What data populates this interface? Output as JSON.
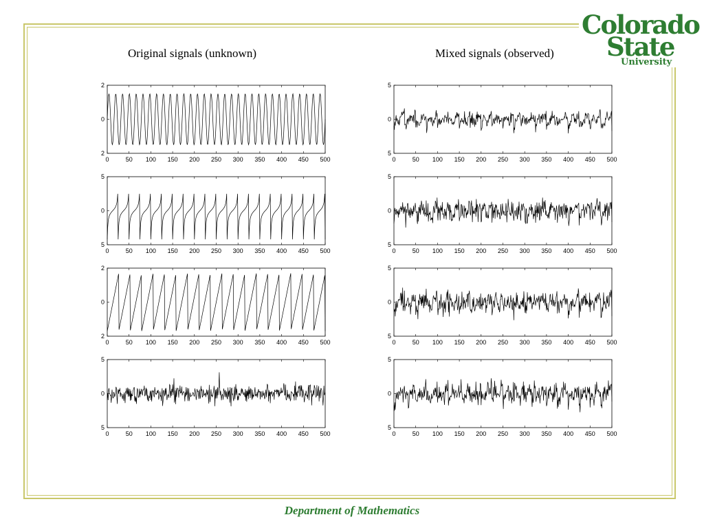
{
  "left_title": "Original signals (unknown)",
  "right_title": "Mixed signals (observed)",
  "footer": "Department of Mathematics",
  "logo": {
    "line1": "Colorado",
    "line2": "State",
    "line3": "University",
    "color": "#2e7d32"
  },
  "frame_color": "#c9c76a",
  "chart_data": [
    {
      "type": "line",
      "column": "left",
      "row": 0,
      "signal": "sine",
      "periods": 32,
      "x": [
        0,
        500
      ],
      "xticks": [
        0,
        50,
        100,
        150,
        200,
        250,
        300,
        350,
        400,
        450,
        500
      ],
      "ylim": [
        -2,
        2
      ],
      "ytick_labels": [
        "2",
        "0",
        "2"
      ],
      "amplitude": 1.5
    },
    {
      "type": "line",
      "column": "left",
      "row": 1,
      "signal": "tan-like",
      "periods": 20,
      "x": [
        0,
        500
      ],
      "xticks": [
        0,
        50,
        100,
        150,
        200,
        250,
        300,
        350,
        400,
        450,
        500
      ],
      "ylim": [
        -5,
        5
      ],
      "ytick_labels": [
        "5",
        "0",
        "5"
      ]
    },
    {
      "type": "line",
      "column": "left",
      "row": 2,
      "signal": "sawtooth",
      "periods": 19,
      "x": [
        0,
        500
      ],
      "xticks": [
        0,
        50,
        100,
        150,
        200,
        250,
        300,
        350,
        400,
        450,
        500
      ],
      "ylim": [
        -2,
        2
      ],
      "ytick_labels": [
        "2",
        "0",
        "2"
      ],
      "amplitude": 1.7
    },
    {
      "type": "line",
      "column": "left",
      "row": 3,
      "signal": "noise",
      "x": [
        0,
        500
      ],
      "xticks": [
        0,
        50,
        100,
        150,
        200,
        250,
        300,
        350,
        400,
        450,
        500
      ],
      "ylim": [
        -5,
        5
      ],
      "ytick_labels": [
        "5",
        "0",
        "5"
      ]
    },
    {
      "type": "line",
      "column": "right",
      "row": 0,
      "signal": "mixture",
      "x": [
        0,
        500
      ],
      "xticks": [
        0,
        50,
        100,
        150,
        200,
        250,
        300,
        350,
        400,
        450,
        500
      ],
      "ylim": [
        -5,
        5
      ],
      "ytick_labels": [
        "5",
        "0",
        "5"
      ]
    },
    {
      "type": "line",
      "column": "right",
      "row": 1,
      "signal": "mixture",
      "x": [
        0,
        500
      ],
      "xticks": [
        0,
        50,
        100,
        150,
        200,
        250,
        300,
        350,
        400,
        450,
        500
      ],
      "ylim": [
        -5,
        5
      ],
      "ytick_labels": [
        "5",
        "0",
        "5"
      ]
    },
    {
      "type": "line",
      "column": "right",
      "row": 2,
      "signal": "mixture",
      "x": [
        0,
        500
      ],
      "xticks": [
        0,
        50,
        100,
        150,
        200,
        250,
        300,
        350,
        400,
        450,
        500
      ],
      "ylim": [
        -5,
        5
      ],
      "ytick_labels": [
        "5",
        "0",
        "5"
      ]
    },
    {
      "type": "line",
      "column": "right",
      "row": 3,
      "signal": "mixture",
      "x": [
        0,
        500
      ],
      "xticks": [
        0,
        50,
        100,
        150,
        200,
        250,
        300,
        350,
        400,
        450,
        500
      ],
      "ylim": [
        -5,
        5
      ],
      "ytick_labels": [
        "5",
        "0",
        "5"
      ]
    }
  ]
}
